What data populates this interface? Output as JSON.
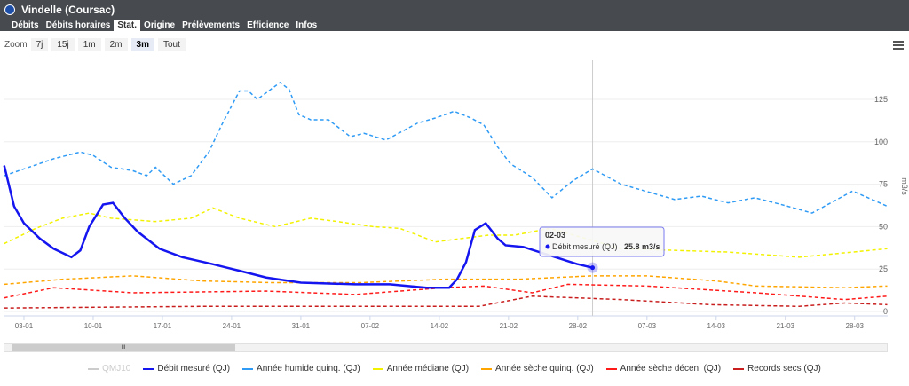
{
  "window": {
    "title": "Vindelle (Coursac)"
  },
  "tabs": [
    "Débits",
    "Débits horaires",
    "Stat.",
    "Origine",
    "Prélèvements",
    "Efficience",
    "Infos"
  ],
  "active_tab": "Stat.",
  "zoom": {
    "label": "Zoom",
    "options": [
      "7j",
      "15j",
      "1m",
      "2m",
      "3m",
      "Tout"
    ],
    "active": "3m"
  },
  "tooltip": {
    "date": "02-03",
    "series": "Débit mesuré (QJ)",
    "value": "25.8 m3/s"
  },
  "scrollbar": {
    "grip": "III"
  },
  "chart_data": {
    "type": "line",
    "ylabel": "m3/s",
    "ylim": [
      0,
      135
    ],
    "yticks": [
      "0",
      "25",
      "50",
      "75",
      "100",
      "125"
    ],
    "xticks": [
      {
        "day": 2,
        "label": "03-01"
      },
      {
        "day": 9,
        "label": "10-01"
      },
      {
        "day": 16,
        "label": "17-01"
      },
      {
        "day": 23,
        "label": "24-01"
      },
      {
        "day": 30,
        "label": "31-01"
      },
      {
        "day": 37,
        "label": "07-02"
      },
      {
        "day": 44,
        "label": "14-02"
      },
      {
        "day": 51,
        "label": "21-02"
      },
      {
        "day": 58,
        "label": "28-02"
      },
      {
        "day": 65,
        "label": "07-03"
      },
      {
        "day": 72,
        "label": "14-03"
      },
      {
        "day": 79,
        "label": "21-03"
      },
      {
        "day": 86,
        "label": "28-03"
      }
    ],
    "x_unit": "days since 01-01",
    "xlim": [
      0,
      89.5
    ],
    "crosshair_day": 59.5,
    "series": [
      {
        "name": "QMJ10",
        "color": "#cccccc",
        "dash": false,
        "hidden": true,
        "points": []
      },
      {
        "name": "Débit mesuré (QJ)",
        "color": "#1515f0",
        "dash": false,
        "points": [
          [
            0,
            86
          ],
          [
            1,
            62
          ],
          [
            2,
            52
          ],
          [
            3.6,
            43
          ],
          [
            5,
            37
          ],
          [
            6.8,
            32
          ],
          [
            7.7,
            36
          ],
          [
            8.6,
            50
          ],
          [
            10,
            63
          ],
          [
            11,
            64
          ],
          [
            12.2,
            55
          ],
          [
            13.5,
            47
          ],
          [
            15.7,
            37
          ],
          [
            18,
            32
          ],
          [
            21,
            28
          ],
          [
            23.8,
            24
          ],
          [
            26.5,
            20
          ],
          [
            30,
            17
          ],
          [
            35.5,
            16
          ],
          [
            39,
            16
          ],
          [
            42.7,
            14
          ],
          [
            45,
            14
          ],
          [
            45.8,
            19
          ],
          [
            46.7,
            29
          ],
          [
            47.6,
            48
          ],
          [
            48.7,
            52
          ],
          [
            49.9,
            43
          ],
          [
            50.7,
            39
          ],
          [
            52.5,
            38
          ],
          [
            55.2,
            33
          ],
          [
            57.9,
            28
          ],
          [
            59.5,
            25.8
          ]
        ]
      },
      {
        "name": "Année humide quinq. (QJ)",
        "color": "#2f9bf5",
        "dash": true,
        "points": [
          [
            0,
            80
          ],
          [
            5,
            90
          ],
          [
            7.7,
            94
          ],
          [
            9,
            92
          ],
          [
            10.8,
            85
          ],
          [
            13,
            83
          ],
          [
            14.4,
            80
          ],
          [
            15.3,
            85
          ],
          [
            17.1,
            75
          ],
          [
            18.9,
            80
          ],
          [
            20.7,
            94
          ],
          [
            22,
            110
          ],
          [
            23.8,
            130
          ],
          [
            24.7,
            130
          ],
          [
            25.6,
            125
          ],
          [
            27.9,
            135
          ],
          [
            28.8,
            131
          ],
          [
            29.8,
            116
          ],
          [
            31,
            113
          ],
          [
            32.8,
            113
          ],
          [
            35,
            103
          ],
          [
            36.4,
            105
          ],
          [
            38.6,
            101
          ],
          [
            41.8,
            111
          ],
          [
            43.6,
            114
          ],
          [
            45.5,
            118
          ],
          [
            47.2,
            114
          ],
          [
            48.5,
            110
          ],
          [
            49.9,
            97
          ],
          [
            51.2,
            87
          ],
          [
            53.4,
            79
          ],
          [
            55.4,
            67
          ],
          [
            57.5,
            77
          ],
          [
            59.5,
            84
          ],
          [
            62.4,
            75
          ],
          [
            64.2,
            72
          ],
          [
            67.8,
            66
          ],
          [
            70.5,
            68
          ],
          [
            73.2,
            64
          ],
          [
            75.9,
            67
          ],
          [
            78.6,
            63
          ],
          [
            81.7,
            58
          ],
          [
            85.8,
            71
          ],
          [
            89.3,
            62
          ]
        ]
      },
      {
        "name": "Année médiane (QJ)",
        "color": "#f2f200",
        "dash": true,
        "points": [
          [
            0,
            40
          ],
          [
            3.2,
            49
          ],
          [
            5.9,
            55
          ],
          [
            8.6,
            58
          ],
          [
            10.8,
            55
          ],
          [
            15.3,
            53
          ],
          [
            18.9,
            55
          ],
          [
            21.1,
            61
          ],
          [
            23.8,
            55
          ],
          [
            27.4,
            50
          ],
          [
            31,
            55
          ],
          [
            33.7,
            53
          ],
          [
            37.3,
            50
          ],
          [
            40,
            49
          ],
          [
            43.6,
            41
          ],
          [
            46.3,
            43
          ],
          [
            49,
            45
          ],
          [
            51.6,
            45
          ],
          [
            55.2,
            49
          ],
          [
            62.4,
            37
          ],
          [
            67.8,
            36
          ],
          [
            73.2,
            35
          ],
          [
            80.4,
            32
          ],
          [
            85.8,
            35
          ],
          [
            89.3,
            37
          ]
        ]
      },
      {
        "name": "Année sèche quinq. (QJ)",
        "color": "#ffa500",
        "dash": true,
        "points": [
          [
            0,
            16
          ],
          [
            6,
            19
          ],
          [
            13,
            21
          ],
          [
            20,
            18
          ],
          [
            27,
            17
          ],
          [
            36,
            17
          ],
          [
            44.5,
            19
          ],
          [
            52,
            19
          ],
          [
            59.5,
            21
          ],
          [
            65,
            21
          ],
          [
            72,
            18
          ],
          [
            76,
            15
          ],
          [
            85,
            14
          ],
          [
            89.3,
            15
          ]
        ]
      },
      {
        "name": "Année sèche décen. (QJ)",
        "color": "#ff1a1a",
        "dash": true,
        "points": [
          [
            0,
            8
          ],
          [
            5,
            14
          ],
          [
            13,
            11
          ],
          [
            26.5,
            12
          ],
          [
            35.5,
            10
          ],
          [
            44.5,
            14
          ],
          [
            48.5,
            15
          ],
          [
            53.4,
            11
          ],
          [
            57,
            16
          ],
          [
            65,
            15
          ],
          [
            76,
            11
          ],
          [
            85,
            7
          ],
          [
            89.3,
            9
          ]
        ]
      },
      {
        "name": "Records secs (QJ)",
        "color": "#c81e1e",
        "dash": true,
        "points": [
          [
            0,
            2
          ],
          [
            20,
            3
          ],
          [
            40,
            3
          ],
          [
            48,
            3
          ],
          [
            51.6,
            7
          ],
          [
            53.4,
            9
          ],
          [
            62.4,
            7
          ],
          [
            71.4,
            4
          ],
          [
            80.4,
            3
          ],
          [
            85,
            5
          ],
          [
            89.3,
            4
          ]
        ]
      }
    ]
  }
}
